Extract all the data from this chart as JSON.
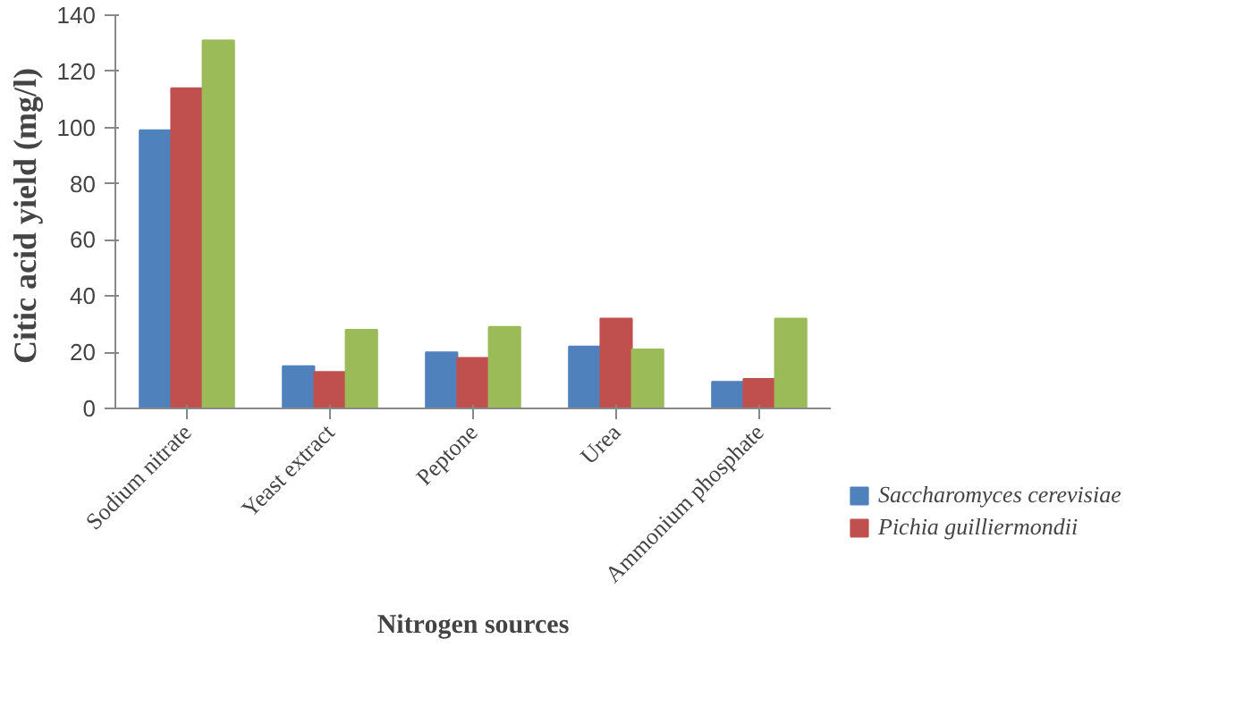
{
  "chart_data": {
    "type": "bar",
    "xlabel": "Nitrogen sources",
    "ylabel": "Citic acid yield  (mg/l)",
    "categories": [
      "Sodium nitrate",
      "Yeast extract",
      "Peptone",
      "Urea",
      "Ammonium phosphate"
    ],
    "series": [
      {
        "name": "Saccharomyces cerevisiae",
        "color": "#4f81bd",
        "values": [
          99,
          15,
          20,
          22,
          9.5
        ]
      },
      {
        "name": "Pichia guilliermondii",
        "color": "#c0504d",
        "values": [
          114,
          13,
          18,
          32,
          10.5
        ]
      },
      {
        "color": "#9bbb59",
        "values": [
          131,
          28,
          29,
          21,
          32
        ]
      }
    ],
    "ylim": [
      0,
      140
    ],
    "yticks": [
      0,
      20,
      40,
      60,
      80,
      100,
      120,
      140
    ],
    "legend": "right"
  }
}
